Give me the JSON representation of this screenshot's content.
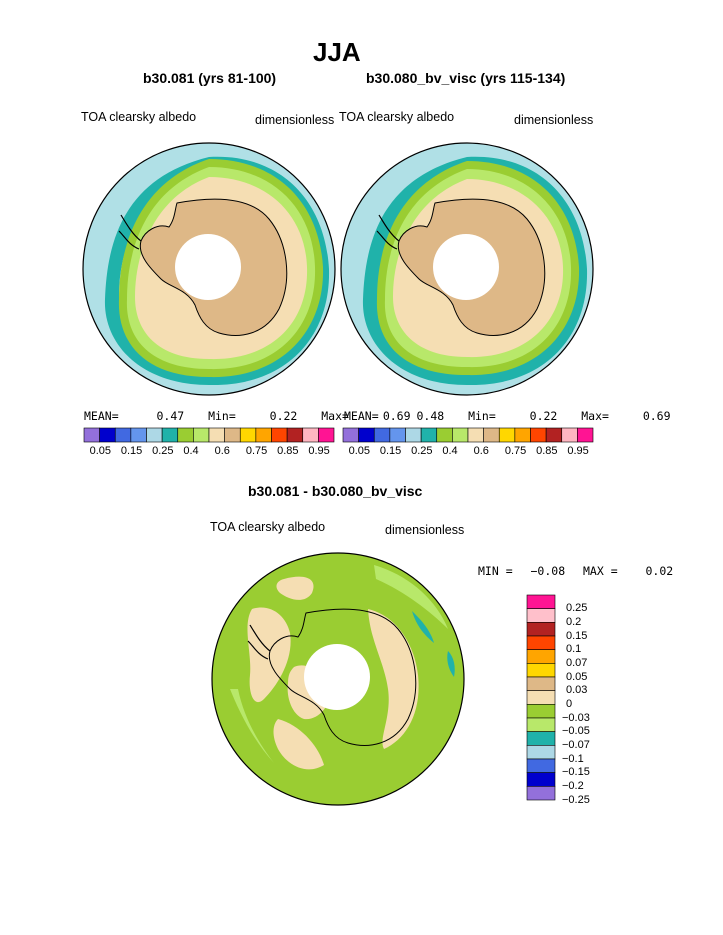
{
  "page": {
    "title": "JJA",
    "panel_left": {
      "case": "b30.081 (yrs 81-100)",
      "field": "TOA clearsky albedo",
      "units": "dimensionless",
      "stats": {
        "mean_label": "MEAN=",
        "mean": "0.47",
        "min_label": "Min=",
        "min": "0.22",
        "max_label": "Max=",
        "max": "0.69"
      }
    },
    "panel_right": {
      "case": "b30.080_bv_visc (yrs 115-134)",
      "field": "TOA clearsky albedo",
      "units": "dimensionless",
      "stats": {
        "mean_label": "MEAN=",
        "mean": "0.48",
        "min_label": "Min=",
        "min": "0.22",
        "max_label": "Max=",
        "max": "0.69"
      }
    },
    "panel_diff": {
      "case": "b30.081 - b30.080_bv_visc",
      "field": "TOA clearsky albedo",
      "units": "dimensionless",
      "stats": {
        "min_label": "MIN =",
        "min": "−0.08",
        "max_label": "MAX =",
        "max": "0.02"
      }
    }
  },
  "colors": {
    "abs_scale": [
      "#9370db",
      "#0000cd",
      "#4169e1",
      "#6495ed",
      "#add8e6",
      "#20b2aa",
      "#9acd32",
      "#b8e86a",
      "#f5deb3",
      "#deb887",
      "#ffd700",
      "#ffa500",
      "#ff4500",
      "#b22222",
      "#ffb6c1",
      "#ff1493"
    ],
    "diff_scale_top_to_bottom": [
      "#ff1493",
      "#ffc0cb",
      "#b22222",
      "#ff4500",
      "#ffa500",
      "#ffd700",
      "#deb887",
      "#f5deb3",
      "#9acd32",
      "#b8e86a",
      "#20b2aa",
      "#add8e6",
      "#4169e1",
      "#0000cd",
      "#9370db"
    ],
    "ocean_outer": "#b0e0e6",
    "sea_ice_zone": "#f5deb3",
    "antarctica": "#deb887"
  },
  "chart_data": [
    {
      "type": "heatmap",
      "title": "b30.081 (yrs 81-100)",
      "projection": "south polar stereographic",
      "field": "TOA clearsky albedo",
      "units": "dimensionless",
      "mean": 0.47,
      "min": 0.22,
      "max": 0.69,
      "colorbar_ticks": [
        "0.05",
        "0.15",
        "0.25",
        "0.4",
        "0.6",
        "0.75",
        "0.85",
        "0.95"
      ]
    },
    {
      "type": "heatmap",
      "title": "b30.080_bv_visc (yrs 115-134)",
      "projection": "south polar stereographic",
      "field": "TOA clearsky albedo",
      "units": "dimensionless",
      "mean": 0.48,
      "min": 0.22,
      "max": 0.69,
      "colorbar_ticks": [
        "0.05",
        "0.15",
        "0.25",
        "0.4",
        "0.6",
        "0.75",
        "0.85",
        "0.95"
      ]
    },
    {
      "type": "heatmap",
      "title": "b30.081 - b30.080_bv_visc",
      "projection": "south polar stereographic",
      "field": "TOA clearsky albedo",
      "units": "dimensionless",
      "min": -0.08,
      "max": 0.02,
      "colorbar_ticks": [
        "0.25",
        "0.2",
        "0.15",
        "0.1",
        "0.07",
        "0.05",
        "0.03",
        "0",
        "−0.03",
        "−0.05",
        "−0.07",
        "−0.1",
        "−0.15",
        "−0.2",
        "−0.25"
      ]
    }
  ]
}
